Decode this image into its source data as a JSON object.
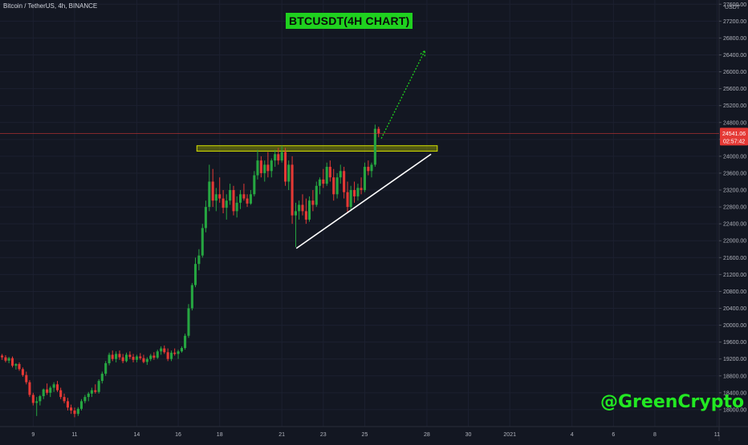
{
  "header": {
    "symbol": "Bitcoin / TetherUS, 4h, BINANCE"
  },
  "overlay": {
    "title_box": "BTCUSDT(4H CHART)",
    "watermark": "@GreenCrypto"
  },
  "colors": {
    "background": "#131722",
    "up": "#26a641",
    "down": "#e53935",
    "zone": "#9ea800",
    "trendline": "#ffffff",
    "projection": "#1fd11f",
    "price_line": "#e53935"
  },
  "chart_data": {
    "type": "candlestick",
    "title": "BTCUSDT(4H CHART)",
    "y_unit_label": "USDT",
    "y_axis_side": "right",
    "ylim": [
      17600,
      27700
    ],
    "y_ticks": [
      18000,
      18400,
      18800,
      19200,
      19600,
      20000,
      20400,
      20800,
      21200,
      21600,
      22000,
      22400,
      22800,
      23200,
      23600,
      24000,
      24400,
      24800,
      25200,
      25600,
      26000,
      26400,
      26800,
      27200,
      27600
    ],
    "y_tick_labels": [
      "18000.00",
      "18400.00",
      "18800.00",
      "19200.00",
      "19600.00",
      "20000.00",
      "20400.00",
      "20800.00",
      "21200.00",
      "21600.00",
      "22000.00",
      "22400.00",
      "22800.00",
      "23200.00",
      "23600.00",
      "24000.00",
      "24400.00",
      "24800.00",
      "25200.00",
      "25600.00",
      "26000.00",
      "26400.00",
      "26800.00",
      "27200.00",
      "27600.00"
    ],
    "x_ticks": [
      {
        "label": "9",
        "day": 9
      },
      {
        "label": "11",
        "day": 11
      },
      {
        "label": "14",
        "day": 14
      },
      {
        "label": "16",
        "day": 16
      },
      {
        "label": "18",
        "day": 18
      },
      {
        "label": "21",
        "day": 21
      },
      {
        "label": "23",
        "day": 23
      },
      {
        "label": "25",
        "day": 25
      },
      {
        "label": "28",
        "day": 28
      },
      {
        "label": "30",
        "day": 30
      },
      {
        "label": "2021",
        "day": 32
      },
      {
        "label": "4",
        "day": 35
      },
      {
        "label": "6",
        "day": 37
      },
      {
        "label": "8",
        "day": 39
      },
      {
        "label": "11",
        "day": 42
      }
    ],
    "x_range_days": [
      7.4,
      42.1
    ],
    "current_price": "24541.06",
    "countdown": "02:57:42",
    "current_price_value": 24541.06,
    "resistance_zone": {
      "from_day": 16.9,
      "to_day": 28.5,
      "low": 24120,
      "high": 24250
    },
    "trendline": {
      "from": {
        "day": 21.7,
        "price": 21820
      },
      "to": {
        "day": 28.2,
        "price": 24050
      }
    },
    "projection": {
      "from": {
        "day": 25.8,
        "price": 24420
      },
      "to": {
        "day": 27.9,
        "price": 26500
      }
    },
    "candles": [
      {
        "d": 7.5,
        "o": 19280,
        "h": 19320,
        "l": 19180,
        "c": 19240
      },
      {
        "d": 7.67,
        "o": 19240,
        "h": 19290,
        "l": 19120,
        "c": 19160
      },
      {
        "d": 7.83,
        "o": 19160,
        "h": 19250,
        "l": 19100,
        "c": 19220
      },
      {
        "d": 8.0,
        "o": 19220,
        "h": 19260,
        "l": 19000,
        "c": 19040
      },
      {
        "d": 8.17,
        "o": 19040,
        "h": 19100,
        "l": 18950,
        "c": 19080
      },
      {
        "d": 8.33,
        "o": 19080,
        "h": 19120,
        "l": 18920,
        "c": 18960
      },
      {
        "d": 8.5,
        "o": 18960,
        "h": 19000,
        "l": 18780,
        "c": 18820
      },
      {
        "d": 8.67,
        "o": 18820,
        "h": 18900,
        "l": 18600,
        "c": 18650
      },
      {
        "d": 8.83,
        "o": 18650,
        "h": 18700,
        "l": 18300,
        "c": 18350
      },
      {
        "d": 9.0,
        "o": 18350,
        "h": 18400,
        "l": 18100,
        "c": 18160
      },
      {
        "d": 9.17,
        "o": 18160,
        "h": 18300,
        "l": 17850,
        "c": 18200
      },
      {
        "d": 9.33,
        "o": 18200,
        "h": 18350,
        "l": 18100,
        "c": 18320
      },
      {
        "d": 9.5,
        "o": 18320,
        "h": 18500,
        "l": 18250,
        "c": 18480
      },
      {
        "d": 9.67,
        "o": 18480,
        "h": 18620,
        "l": 18350,
        "c": 18400
      },
      {
        "d": 9.83,
        "o": 18400,
        "h": 18560,
        "l": 18300,
        "c": 18520
      },
      {
        "d": 10.0,
        "o": 18520,
        "h": 18650,
        "l": 18420,
        "c": 18600
      },
      {
        "d": 10.17,
        "o": 18600,
        "h": 18680,
        "l": 18420,
        "c": 18460
      },
      {
        "d": 10.33,
        "o": 18460,
        "h": 18520,
        "l": 18250,
        "c": 18300
      },
      {
        "d": 10.5,
        "o": 18300,
        "h": 18380,
        "l": 18150,
        "c": 18200
      },
      {
        "d": 10.67,
        "o": 18200,
        "h": 18280,
        "l": 17980,
        "c": 18050
      },
      {
        "d": 10.83,
        "o": 18050,
        "h": 18120,
        "l": 17900,
        "c": 17980
      },
      {
        "d": 11.0,
        "o": 17980,
        "h": 18050,
        "l": 17820,
        "c": 17900
      },
      {
        "d": 11.17,
        "o": 17900,
        "h": 18060,
        "l": 17850,
        "c": 18020
      },
      {
        "d": 11.33,
        "o": 18020,
        "h": 18250,
        "l": 17980,
        "c": 18200
      },
      {
        "d": 11.5,
        "o": 18200,
        "h": 18350,
        "l": 18150,
        "c": 18300
      },
      {
        "d": 11.67,
        "o": 18300,
        "h": 18420,
        "l": 18200,
        "c": 18380
      },
      {
        "d": 11.83,
        "o": 18380,
        "h": 18520,
        "l": 18300,
        "c": 18460
      },
      {
        "d": 12.0,
        "o": 18460,
        "h": 18600,
        "l": 18380,
        "c": 18420
      },
      {
        "d": 12.17,
        "o": 18420,
        "h": 18720,
        "l": 18380,
        "c": 18680
      },
      {
        "d": 12.33,
        "o": 18680,
        "h": 18900,
        "l": 18620,
        "c": 18850
      },
      {
        "d": 12.5,
        "o": 18850,
        "h": 19150,
        "l": 18800,
        "c": 19100
      },
      {
        "d": 12.67,
        "o": 19100,
        "h": 19350,
        "l": 19050,
        "c": 19300
      },
      {
        "d": 12.83,
        "o": 19300,
        "h": 19400,
        "l": 19150,
        "c": 19200
      },
      {
        "d": 13.0,
        "o": 19200,
        "h": 19380,
        "l": 19120,
        "c": 19320
      },
      {
        "d": 13.17,
        "o": 19320,
        "h": 19400,
        "l": 19180,
        "c": 19240
      },
      {
        "d": 13.33,
        "o": 19240,
        "h": 19320,
        "l": 19100,
        "c": 19150
      },
      {
        "d": 13.5,
        "o": 19150,
        "h": 19350,
        "l": 19120,
        "c": 19300
      },
      {
        "d": 13.67,
        "o": 19300,
        "h": 19380,
        "l": 19200,
        "c": 19250
      },
      {
        "d": 13.83,
        "o": 19250,
        "h": 19320,
        "l": 19120,
        "c": 19180
      },
      {
        "d": 14.0,
        "o": 19180,
        "h": 19300,
        "l": 19120,
        "c": 19260
      },
      {
        "d": 14.17,
        "o": 19260,
        "h": 19340,
        "l": 19180,
        "c": 19220
      },
      {
        "d": 14.33,
        "o": 19220,
        "h": 19300,
        "l": 19100,
        "c": 19130
      },
      {
        "d": 14.5,
        "o": 19130,
        "h": 19240,
        "l": 19060,
        "c": 19200
      },
      {
        "d": 14.67,
        "o": 19200,
        "h": 19320,
        "l": 19150,
        "c": 19280
      },
      {
        "d": 14.83,
        "o": 19280,
        "h": 19360,
        "l": 19180,
        "c": 19230
      },
      {
        "d": 15.0,
        "o": 19230,
        "h": 19420,
        "l": 19200,
        "c": 19380
      },
      {
        "d": 15.17,
        "o": 19380,
        "h": 19500,
        "l": 19300,
        "c": 19450
      },
      {
        "d": 15.33,
        "o": 19450,
        "h": 19520,
        "l": 19320,
        "c": 19360
      },
      {
        "d": 15.5,
        "o": 19360,
        "h": 19450,
        "l": 19150,
        "c": 19200
      },
      {
        "d": 15.67,
        "o": 19200,
        "h": 19400,
        "l": 19150,
        "c": 19350
      },
      {
        "d": 15.83,
        "o": 19350,
        "h": 19450,
        "l": 19280,
        "c": 19320
      },
      {
        "d": 16.0,
        "o": 19320,
        "h": 19420,
        "l": 19200,
        "c": 19380
      },
      {
        "d": 16.17,
        "o": 19380,
        "h": 19500,
        "l": 19350,
        "c": 19460
      },
      {
        "d": 16.33,
        "o": 19460,
        "h": 19800,
        "l": 19420,
        "c": 19750
      },
      {
        "d": 16.5,
        "o": 19750,
        "h": 20500,
        "l": 19700,
        "c": 20400
      },
      {
        "d": 16.67,
        "o": 20400,
        "h": 21000,
        "l": 20350,
        "c": 20950
      },
      {
        "d": 16.83,
        "o": 20950,
        "h": 21600,
        "l": 20900,
        "c": 21450
      },
      {
        "d": 17.0,
        "o": 21450,
        "h": 21800,
        "l": 21300,
        "c": 21650
      },
      {
        "d": 17.17,
        "o": 21650,
        "h": 22400,
        "l": 21600,
        "c": 22300
      },
      {
        "d": 17.33,
        "o": 22300,
        "h": 22950,
        "l": 22200,
        "c": 22800
      },
      {
        "d": 17.5,
        "o": 22800,
        "h": 23800,
        "l": 22700,
        "c": 23400
      },
      {
        "d": 17.67,
        "o": 23400,
        "h": 23700,
        "l": 22800,
        "c": 22950
      },
      {
        "d": 17.83,
        "o": 22950,
        "h": 23250,
        "l": 22700,
        "c": 23100
      },
      {
        "d": 18.0,
        "o": 23100,
        "h": 23500,
        "l": 22900,
        "c": 23000
      },
      {
        "d": 18.17,
        "o": 23000,
        "h": 23200,
        "l": 22650,
        "c": 22780
      },
      {
        "d": 18.33,
        "o": 22780,
        "h": 23100,
        "l": 22500,
        "c": 22950
      },
      {
        "d": 18.5,
        "o": 22950,
        "h": 23350,
        "l": 22850,
        "c": 23200
      },
      {
        "d": 18.67,
        "o": 23200,
        "h": 23300,
        "l": 22600,
        "c": 22700
      },
      {
        "d": 18.83,
        "o": 22700,
        "h": 23050,
        "l": 22550,
        "c": 22900
      },
      {
        "d": 19.0,
        "o": 22900,
        "h": 23200,
        "l": 22750,
        "c": 23100
      },
      {
        "d": 19.17,
        "o": 23100,
        "h": 23350,
        "l": 22950,
        "c": 23000
      },
      {
        "d": 19.33,
        "o": 23000,
        "h": 23100,
        "l": 22800,
        "c": 22880
      },
      {
        "d": 19.5,
        "o": 22880,
        "h": 23200,
        "l": 22850,
        "c": 23100
      },
      {
        "d": 19.67,
        "o": 23100,
        "h": 23650,
        "l": 23050,
        "c": 23550
      },
      {
        "d": 19.83,
        "o": 23550,
        "h": 24150,
        "l": 23450,
        "c": 23900
      },
      {
        "d": 20.0,
        "o": 23900,
        "h": 24000,
        "l": 23500,
        "c": 23600
      },
      {
        "d": 20.17,
        "o": 23600,
        "h": 23900,
        "l": 23400,
        "c": 23800
      },
      {
        "d": 20.33,
        "o": 23800,
        "h": 24100,
        "l": 23500,
        "c": 23650
      },
      {
        "d": 20.5,
        "o": 23650,
        "h": 23950,
        "l": 23500,
        "c": 23900
      },
      {
        "d": 20.67,
        "o": 23900,
        "h": 24150,
        "l": 23750,
        "c": 24050
      },
      {
        "d": 20.83,
        "o": 24050,
        "h": 24200,
        "l": 23800,
        "c": 23900
      },
      {
        "d": 21.0,
        "o": 23900,
        "h": 24250,
        "l": 23850,
        "c": 24100
      },
      {
        "d": 21.17,
        "o": 24100,
        "h": 24200,
        "l": 23300,
        "c": 23400
      },
      {
        "d": 21.33,
        "o": 23400,
        "h": 23900,
        "l": 23200,
        "c": 23800
      },
      {
        "d": 21.5,
        "o": 23800,
        "h": 24000,
        "l": 22400,
        "c": 22600
      },
      {
        "d": 21.67,
        "o": 22600,
        "h": 22900,
        "l": 21850,
        "c": 22700
      },
      {
        "d": 21.83,
        "o": 22700,
        "h": 22950,
        "l": 22500,
        "c": 22850
      },
      {
        "d": 22.0,
        "o": 22850,
        "h": 23100,
        "l": 22600,
        "c": 22700
      },
      {
        "d": 22.17,
        "o": 22700,
        "h": 23000,
        "l": 22400,
        "c": 22500
      },
      {
        "d": 22.33,
        "o": 22500,
        "h": 23050,
        "l": 22450,
        "c": 22950
      },
      {
        "d": 22.5,
        "o": 22950,
        "h": 23200,
        "l": 22700,
        "c": 22850
      },
      {
        "d": 22.67,
        "o": 22850,
        "h": 23400,
        "l": 22800,
        "c": 23300
      },
      {
        "d": 22.83,
        "o": 23300,
        "h": 23500,
        "l": 23100,
        "c": 23450
      },
      {
        "d": 23.0,
        "o": 23450,
        "h": 23700,
        "l": 23250,
        "c": 23350
      },
      {
        "d": 23.17,
        "o": 23350,
        "h": 23850,
        "l": 23300,
        "c": 23750
      },
      {
        "d": 23.33,
        "o": 23750,
        "h": 23900,
        "l": 23400,
        "c": 23500
      },
      {
        "d": 23.5,
        "o": 23500,
        "h": 23700,
        "l": 22950,
        "c": 23100
      },
      {
        "d": 23.67,
        "o": 23100,
        "h": 23600,
        "l": 23000,
        "c": 23500
      },
      {
        "d": 23.83,
        "o": 23500,
        "h": 23800,
        "l": 23350,
        "c": 23650
      },
      {
        "d": 24.0,
        "o": 23650,
        "h": 23750,
        "l": 23000,
        "c": 23150
      },
      {
        "d": 24.17,
        "o": 23150,
        "h": 23400,
        "l": 22650,
        "c": 22800
      },
      {
        "d": 24.33,
        "o": 22800,
        "h": 23300,
        "l": 22700,
        "c": 23200
      },
      {
        "d": 24.5,
        "o": 23200,
        "h": 23400,
        "l": 22900,
        "c": 23050
      },
      {
        "d": 24.67,
        "o": 23050,
        "h": 23350,
        "l": 22950,
        "c": 23250
      },
      {
        "d": 24.83,
        "o": 23250,
        "h": 23500,
        "l": 23100,
        "c": 23200
      },
      {
        "d": 25.0,
        "o": 23200,
        "h": 23850,
        "l": 23150,
        "c": 23750
      },
      {
        "d": 25.17,
        "o": 23750,
        "h": 23900,
        "l": 23550,
        "c": 23650
      },
      {
        "d": 25.33,
        "o": 23650,
        "h": 23850,
        "l": 23500,
        "c": 23800
      },
      {
        "d": 25.5,
        "o": 23800,
        "h": 24750,
        "l": 23750,
        "c": 24650
      },
      {
        "d": 25.67,
        "o": 24650,
        "h": 24700,
        "l": 24450,
        "c": 24541
      }
    ]
  }
}
